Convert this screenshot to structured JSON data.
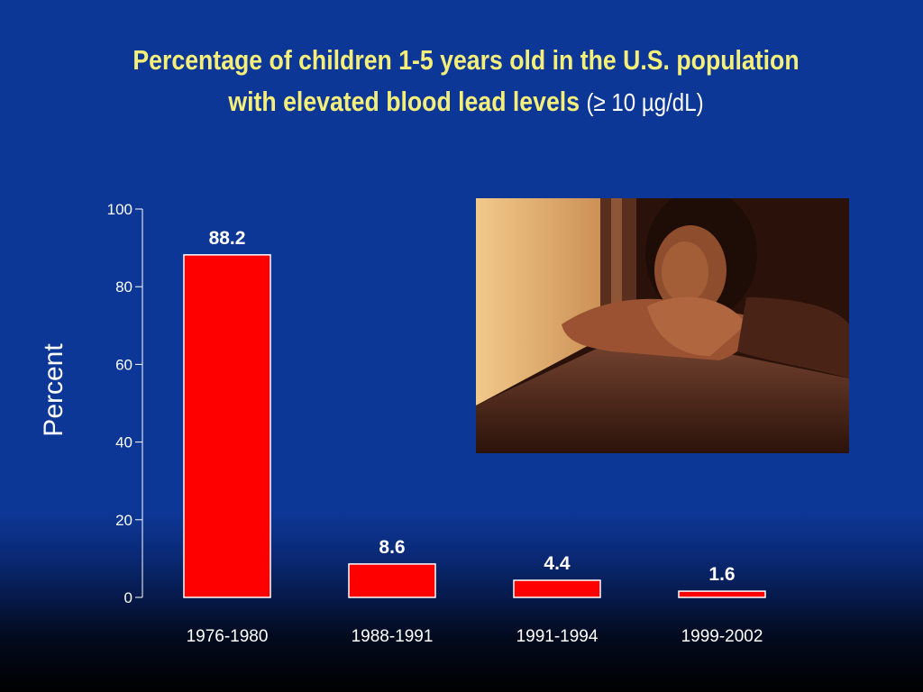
{
  "title": {
    "line1": "Percentage of children 1-5 years old in the U.S. population",
    "line2": "with elevated blood lead levels",
    "unit": "(≥ 10 µg/dL)"
  },
  "colors": {
    "background": "#0d3796",
    "title": "#f4ee7a",
    "bar": "#ff0000",
    "bar_outline": "#ffffff",
    "text": "#ffffff"
  },
  "photo": {
    "description_icon": "child-at-window-photo"
  },
  "chart_data": {
    "type": "bar",
    "categories": [
      "1976-1980",
      "1988-1991",
      "1991-1994",
      "1999-2002"
    ],
    "values": [
      88.2,
      8.6,
      4.4,
      1.6
    ],
    "data_labels": [
      "88.2",
      "8.6",
      "4.4",
      "1.6"
    ],
    "ylabel": "Percent",
    "xlabel": "",
    "ylim": [
      0,
      100
    ],
    "yticks": [
      0,
      20,
      40,
      60,
      80,
      100
    ],
    "grid": false
  }
}
